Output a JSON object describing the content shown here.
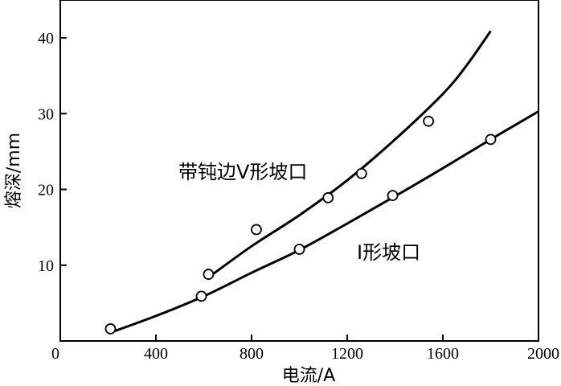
{
  "chart_data": {
    "type": "scatter",
    "title": "",
    "xlabel": "电流/A",
    "ylabel": "熔深/mm",
    "xlim": [
      0,
      2000
    ],
    "ylim": [
      0,
      45
    ],
    "x_ticks": [
      0,
      400,
      800,
      1200,
      1600,
      2000
    ],
    "x_tick_labels": [
      "0",
      "400",
      "800",
      "1200",
      "1600",
      "2000"
    ],
    "y_ticks": [
      10,
      20,
      30,
      40
    ],
    "y_tick_labels": [
      "10",
      "20",
      "30",
      "40"
    ],
    "grid": false,
    "legend": "none",
    "series": [
      {
        "name": "带钝边V形坡口",
        "points": [
          [
            620,
            8.8
          ],
          [
            820,
            14.7
          ],
          [
            1120,
            18.9
          ],
          [
            1260,
            22.1
          ],
          [
            1540,
            29.0
          ]
        ],
        "fit_curve": [
          [
            620,
            8.4
          ],
          [
            800,
            12.5
          ],
          [
            1000,
            16.6
          ],
          [
            1200,
            21.2
          ],
          [
            1400,
            26.6
          ],
          [
            1600,
            32.6
          ],
          [
            1700,
            36.4
          ],
          [
            1800,
            40.9
          ]
        ]
      },
      {
        "name": "I形坡口",
        "points": [
          [
            210,
            1.6
          ],
          [
            590,
            5.9
          ],
          [
            1000,
            12.1
          ],
          [
            1390,
            19.2
          ],
          [
            1800,
            26.6
          ]
        ],
        "fit_curve": [
          [
            200,
            1.0
          ],
          [
            400,
            3.3
          ],
          [
            600,
            5.9
          ],
          [
            800,
            9.0
          ],
          [
            1000,
            12.0
          ],
          [
            1200,
            15.5
          ],
          [
            1400,
            19.1
          ],
          [
            1600,
            22.8
          ],
          [
            1800,
            26.6
          ],
          [
            2000,
            30.3
          ]
        ]
      }
    ]
  }
}
